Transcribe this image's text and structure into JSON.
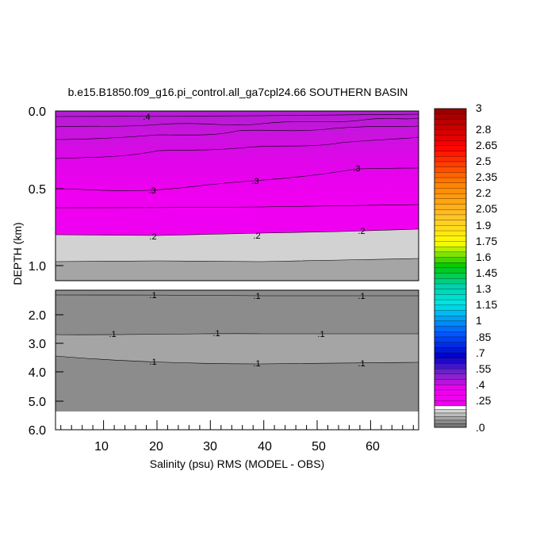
{
  "chart_data": {
    "type": "contour",
    "title": "b.e15.B1850.f09_g16.pi_control.all_ga7cpl24.66 SOUTHERN BASIN",
    "xlabel": "Salinity (psu) RMS (MODEL - OBS)",
    "ylabel": "DEPTH (km)",
    "xlim": [
      1,
      69
    ],
    "x_ticks": [
      "10",
      "20",
      "30",
      "40",
      "50",
      "60"
    ],
    "upper_panel": {
      "ylim": [
        0.0,
        1.1
      ],
      "y_ticks": [
        "0.0",
        "0.5",
        "1.0"
      ],
      "y_tick_values": [
        0.0,
        0.5,
        1.0
      ]
    },
    "lower_panel": {
      "ylim": [
        1.1,
        6.0
      ],
      "y_ticks": [
        "2.0",
        "3.0",
        "4.0",
        "5.0",
        "6.0"
      ],
      "y_tick_values": [
        2.0,
        3.0,
        4.0,
        5.0,
        6.0
      ],
      "no_data_below_km": 5.4
    },
    "contour_labels": [
      ".4",
      ".3",
      ".3",
      ".3",
      ".2",
      ".2",
      ".2",
      ".1",
      ".1",
      ".1",
      ".1",
      ".1",
      ".1",
      ".1",
      ".1",
      ".1",
      ".1"
    ],
    "colorbar": {
      "labels": [
        "3",
        "2.8",
        "2.65",
        "2.5",
        "2.35",
        "2.2",
        "2.05",
        "1.9",
        "1.75",
        "1.6",
        "1.45",
        "1.3",
        "1.15",
        "1",
        ".85",
        ".7",
        ".55",
        ".4",
        ".25",
        ".0"
      ],
      "label_values": [
        3.0,
        2.8,
        2.65,
        2.5,
        2.35,
        2.2,
        2.05,
        1.9,
        1.75,
        1.6,
        1.45,
        1.3,
        1.15,
        1.0,
        0.85,
        0.7,
        0.55,
        0.4,
        0.25,
        0.0
      ]
    },
    "colors": {
      "fill_0_05": "#8c8c8c",
      "fill_05_10": "#a5a5a5",
      "fill_10_15": "#bbbbbb",
      "fill_15_20": "#d2d2d2",
      "fill_20_25": "#ffffff",
      "magenta": "#f000f0",
      "purple_top": "#b21ed2"
    }
  }
}
